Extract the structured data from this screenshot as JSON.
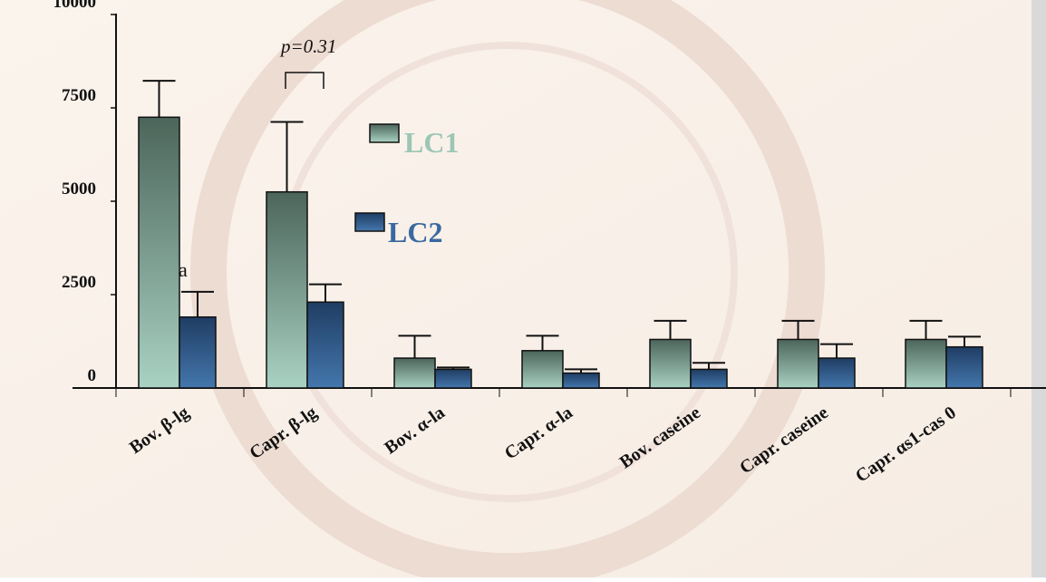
{
  "chart_data": {
    "type": "bar",
    "categories": [
      "Bov. β-lg",
      "Capr. β-lg",
      "Bov. α-la",
      "Capr. α-la",
      "Bov. caseine",
      "Capr. caseine",
      "Capr. αs1-cas 0"
    ],
    "series": [
      {
        "name": "LC1",
        "color": "#4c655a",
        "values": [
          7250,
          5250,
          800,
          1000,
          1300,
          1300,
          1300
        ],
        "errors": [
          975,
          1875,
          600,
          400,
          500,
          500,
          500
        ]
      },
      {
        "name": "LC2",
        "color": "#1f3d63",
        "values": [
          1900,
          2300,
          500,
          400,
          500,
          800,
          1100
        ],
        "errors": [
          675,
          475,
          50,
          100,
          175,
          375,
          275
        ]
      }
    ],
    "ylim": [
      0,
      10000
    ],
    "yticks": [
      0,
      2500,
      5000,
      7500,
      10000
    ],
    "annotations": [
      "p=0.31",
      "a"
    ]
  }
}
